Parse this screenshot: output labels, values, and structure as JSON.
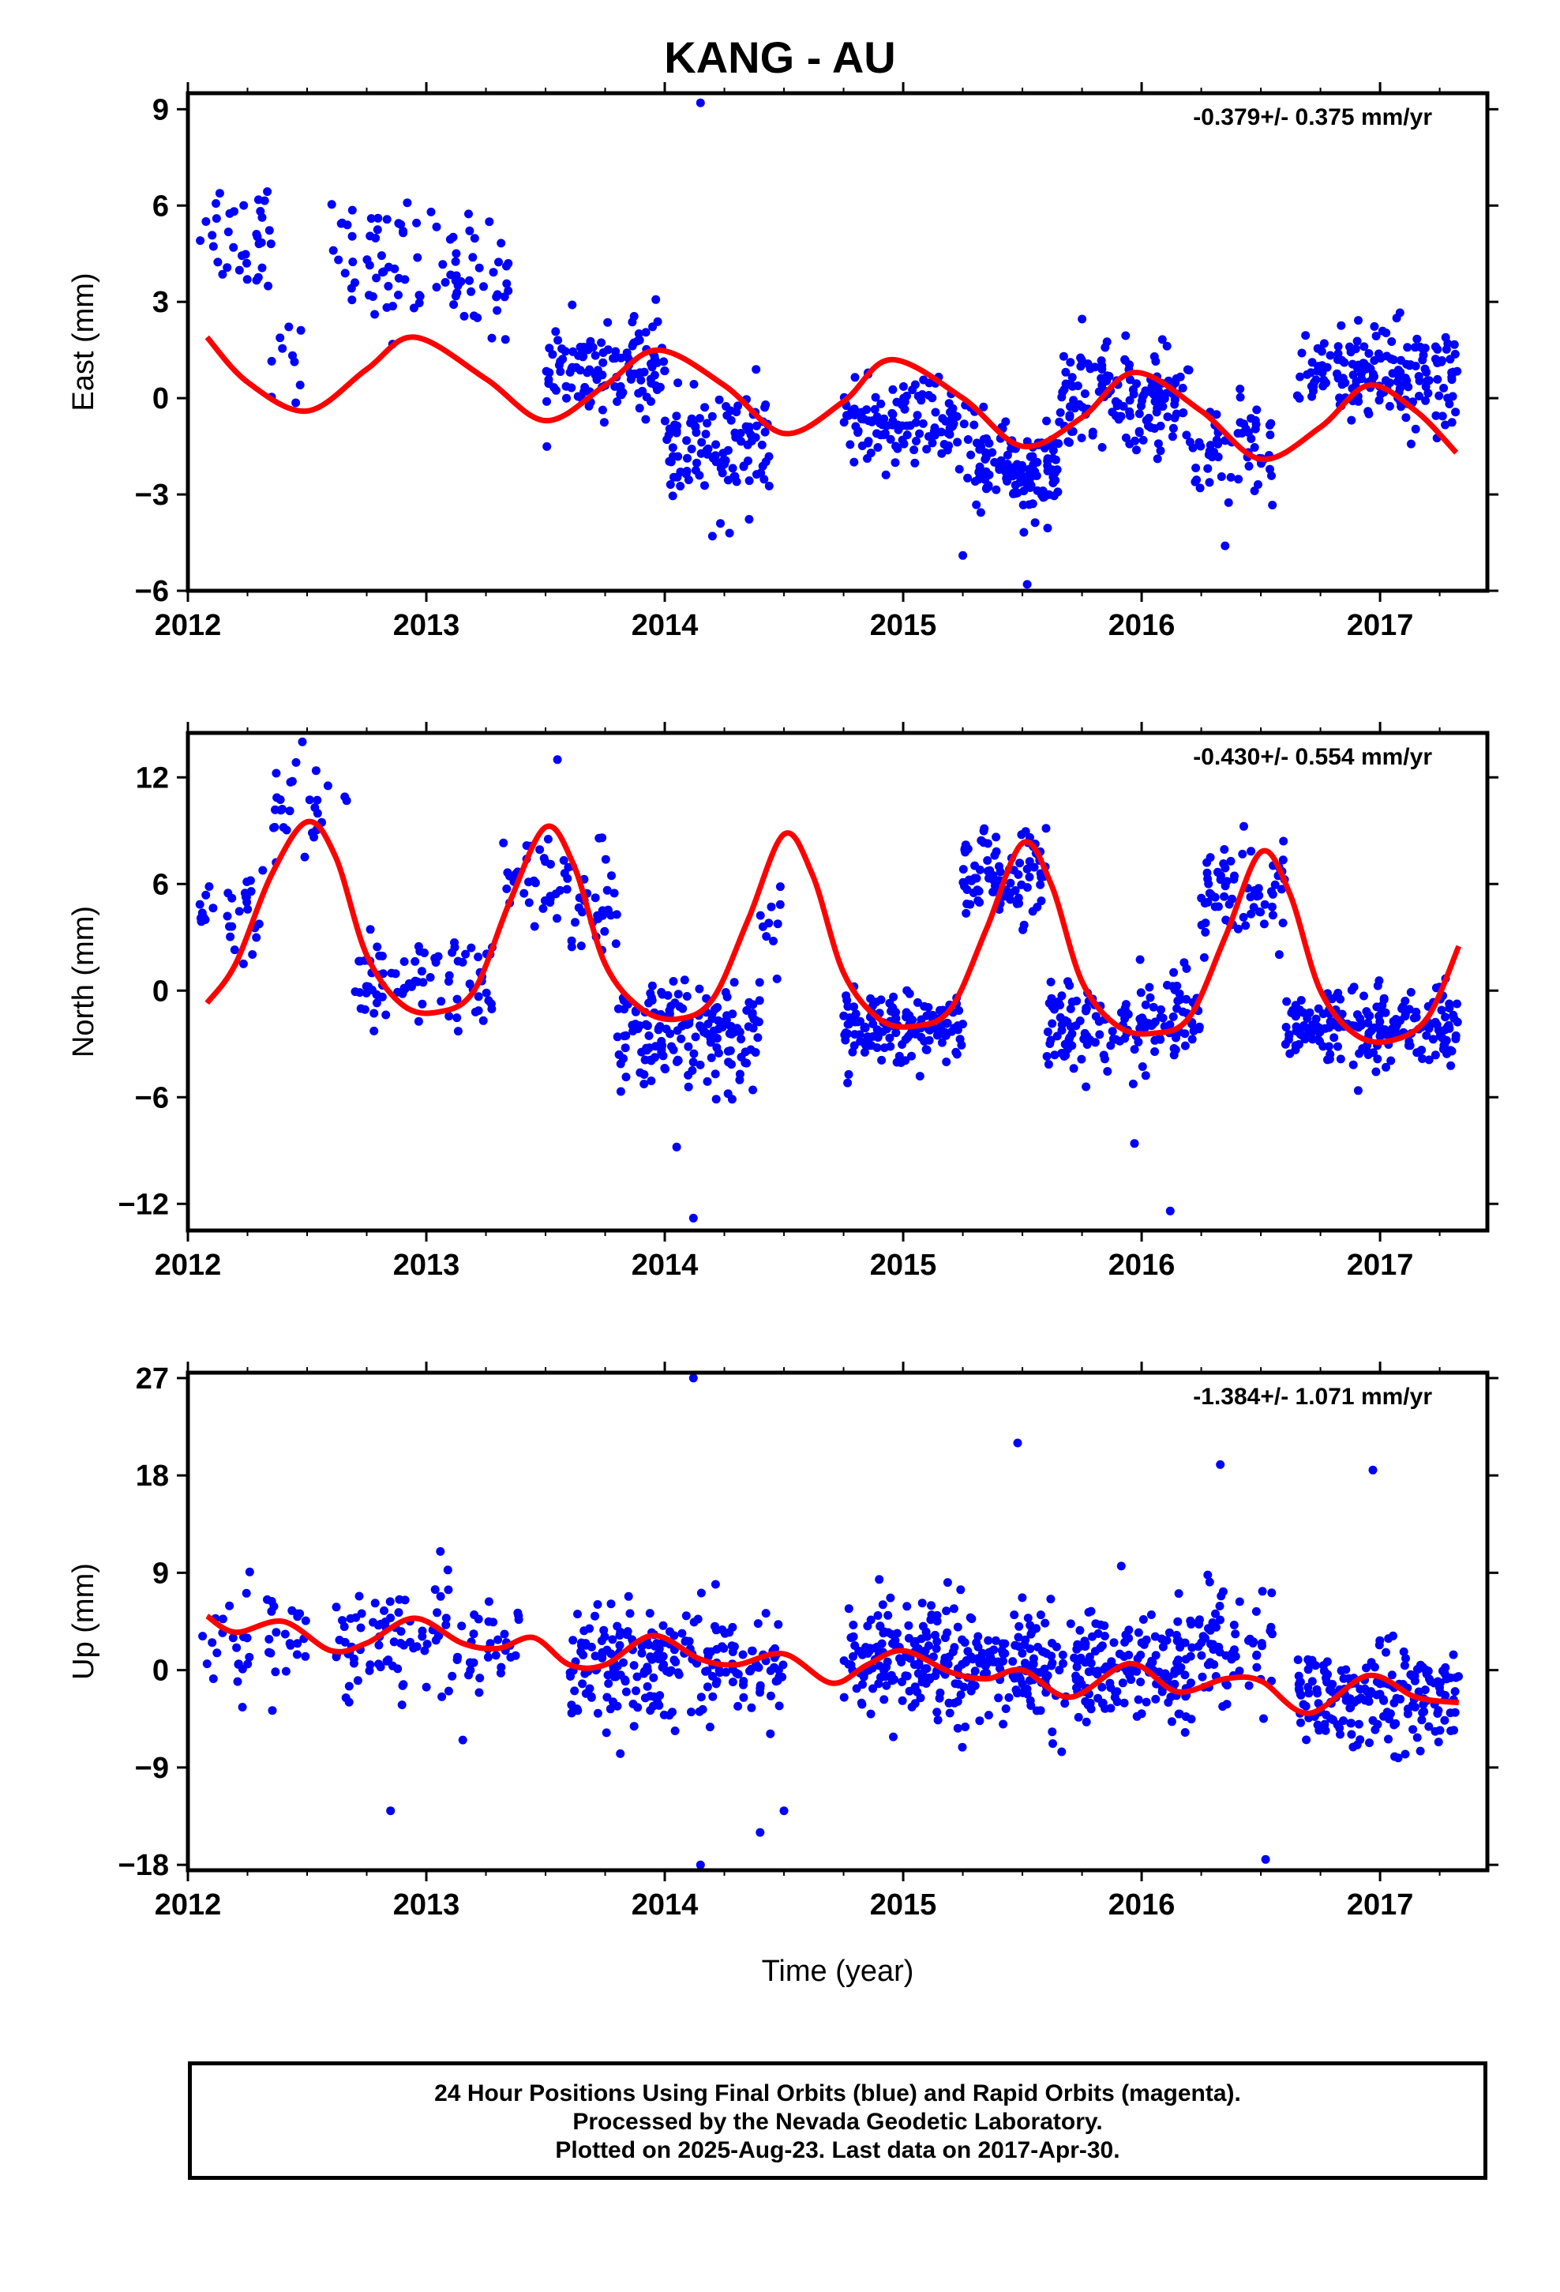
{
  "title": "KANG - AU",
  "x_axis_label": "Time (year)",
  "caption": [
    "24 Hour Positions Using Final Orbits (blue) and Rapid Orbits (magenta).",
    "Processed by the Nevada Geodetic Laboratory.",
    "Plotted on 2025-Aug-23. Last data on 2017-Apr-30."
  ],
  "colors": {
    "points": "#0000ff",
    "model": "#ff0000",
    "frame": "#000000"
  },
  "chart_data": [
    {
      "type": "scatter",
      "name": "East",
      "ylabel": "East (mm)",
      "rate_text": "-0.379+/- 0.375 mm/yr",
      "xlim": [
        2012.0,
        2017.45
      ],
      "ylim": [
        -6,
        9.5
      ],
      "xticks": [
        2012,
        2013,
        2014,
        2015,
        2016,
        2017
      ],
      "yticks": [
        -6,
        -3,
        0,
        3,
        6,
        9
      ],
      "ytick_labels": [
        "−6",
        "−3",
        "0",
        "3",
        "6",
        "9"
      ],
      "model": {
        "x": [
          2012.08,
          2012.25,
          2012.5,
          2012.75,
          2012.95,
          2013.25,
          2013.5,
          2013.75,
          2013.97,
          2014.25,
          2014.5,
          2014.75,
          2014.95,
          2015.25,
          2015.5,
          2015.75,
          2015.97,
          2016.25,
          2016.5,
          2016.75,
          2016.95,
          2017.15,
          2017.32
        ],
        "y": [
          1.9,
          0.5,
          -0.4,
          0.9,
          1.9,
          0.6,
          -0.7,
          0.4,
          1.5,
          0.4,
          -1.1,
          -0.1,
          1.2,
          0.0,
          -1.5,
          -0.6,
          0.8,
          -0.4,
          -1.9,
          -0.9,
          0.4,
          -0.4,
          -1.7
        ]
      },
      "clusters": [
        {
          "x0": 2012.05,
          "x1": 2012.35,
          "mean": 5.2,
          "spread": 1.6,
          "count": 35
        },
        {
          "x0": 2012.35,
          "x1": 2012.5,
          "mean": 1.5,
          "spread": 1.5,
          "count": 10
        },
        {
          "x0": 2012.6,
          "x1": 2013.35,
          "mean": 4.0,
          "spread": 1.6,
          "count": 90
        },
        {
          "x0": 2013.5,
          "x1": 2014.0,
          "mean": 1.0,
          "spread": 1.2,
          "count": 120
        },
        {
          "x0": 2014.0,
          "x1": 2014.45,
          "mean": -1.6,
          "spread": 1.5,
          "count": 110
        },
        {
          "x0": 2014.75,
          "x1": 2015.3,
          "mean": -0.8,
          "spread": 1.1,
          "count": 130
        },
        {
          "x0": 2015.3,
          "x1": 2015.65,
          "mean": -2.3,
          "spread": 1.1,
          "count": 120
        },
        {
          "x0": 2015.65,
          "x1": 2016.2,
          "mean": 0.0,
          "spread": 1.3,
          "count": 150
        },
        {
          "x0": 2016.2,
          "x1": 2016.55,
          "mean": -1.7,
          "spread": 1.3,
          "count": 60
        },
        {
          "x0": 2016.65,
          "x1": 2017.33,
          "mean": 0.8,
          "spread": 1.3,
          "count": 180
        }
      ],
      "outliers": [
        [
          2014.15,
          9.2
        ],
        [
          2015.52,
          -5.8
        ],
        [
          2015.25,
          -4.9
        ],
        [
          2014.2,
          -4.3
        ],
        [
          2016.35,
          -4.6
        ]
      ]
    },
    {
      "type": "scatter",
      "name": "North",
      "ylabel": "North (mm)",
      "rate_text": "-0.430+/- 0.554 mm/yr",
      "xlim": [
        2012.0,
        2017.45
      ],
      "ylim": [
        -13.5,
        14.5
      ],
      "xticks": [
        2012,
        2013,
        2014,
        2015,
        2016,
        2017
      ],
      "yticks": [
        -12,
        -6,
        0,
        6,
        12
      ],
      "ytick_labels": [
        "−12",
        "−6",
        "0",
        "6",
        "12"
      ],
      "model": {
        "x": [
          2012.08,
          2012.2,
          2012.35,
          2012.5,
          2012.62,
          2012.75,
          2012.9,
          2013.05,
          2013.2,
          2013.35,
          2013.5,
          2013.62,
          2013.75,
          2013.9,
          2014.05,
          2014.2,
          2014.35,
          2014.5,
          2014.62,
          2014.75,
          2014.9,
          2015.05,
          2015.2,
          2015.35,
          2015.5,
          2015.62,
          2015.75,
          2015.9,
          2016.05,
          2016.2,
          2016.35,
          2016.5,
          2016.62,
          2016.75,
          2016.9,
          2017.05,
          2017.2,
          2017.33
        ],
        "y": [
          -0.7,
          1.5,
          6.5,
          9.5,
          7.5,
          2.0,
          -0.8,
          -1.2,
          0.0,
          5.0,
          9.2,
          7.0,
          1.5,
          -1.0,
          -1.6,
          -0.5,
          4.0,
          8.8,
          6.5,
          1.0,
          -1.6,
          -2.0,
          -1.0,
          3.5,
          8.3,
          6.0,
          0.5,
          -2.0,
          -2.4,
          -1.5,
          3.0,
          7.8,
          5.5,
          0.0,
          -2.5,
          -2.8,
          -1.5,
          2.5
        ]
      },
      "clusters": [
        {
          "x0": 2012.05,
          "x1": 2012.3,
          "mean": 3.5,
          "spread": 2.5,
          "count": 30
        },
        {
          "x0": 2012.3,
          "x1": 2012.7,
          "mean": 9.5,
          "spread": 2.5,
          "count": 30
        },
        {
          "x0": 2012.7,
          "x1": 2013.3,
          "mean": 0.5,
          "spread": 2.3,
          "count": 80
        },
        {
          "x0": 2013.3,
          "x1": 2013.6,
          "mean": 6.0,
          "spread": 2.2,
          "count": 35
        },
        {
          "x0": 2013.6,
          "x1": 2013.8,
          "mean": 4.5,
          "spread": 3.0,
          "count": 30
        },
        {
          "x0": 2013.8,
          "x1": 2014.4,
          "mean": -2.5,
          "spread": 2.3,
          "count": 170
        },
        {
          "x0": 2014.4,
          "x1": 2014.5,
          "mean": 4.0,
          "spread": 2.5,
          "count": 10
        },
        {
          "x0": 2014.75,
          "x1": 2015.25,
          "mean": -2.0,
          "spread": 1.6,
          "count": 140
        },
        {
          "x0": 2015.25,
          "x1": 2015.6,
          "mean": 6.5,
          "spread": 2.2,
          "count": 90
        },
        {
          "x0": 2015.6,
          "x1": 2016.25,
          "mean": -2.0,
          "spread": 2.3,
          "count": 150
        },
        {
          "x0": 2016.25,
          "x1": 2016.6,
          "mean": 5.5,
          "spread": 2.5,
          "count": 70
        },
        {
          "x0": 2016.6,
          "x1": 2017.33,
          "mean": -2.2,
          "spread": 1.9,
          "count": 200
        }
      ],
      "outliers": [
        [
          2014.12,
          -12.8
        ],
        [
          2016.12,
          -12.4
        ],
        [
          2012.48,
          14.0
        ],
        [
          2013.55,
          13.0
        ],
        [
          2014.05,
          -8.8
        ],
        [
          2015.97,
          -8.6
        ]
      ]
    },
    {
      "type": "scatter",
      "name": "Up",
      "ylabel": "Up (mm)",
      "rate_text": "-1.384+/- 1.071 mm/yr",
      "xlim": [
        2012.0,
        2017.45
      ],
      "ylim": [
        -18.5,
        27.5
      ],
      "xticks": [
        2012,
        2013,
        2014,
        2015,
        2016,
        2017
      ],
      "yticks": [
        -18,
        -9,
        0,
        9,
        18,
        27
      ],
      "ytick_labels": [
        "−18",
        "−9",
        "0",
        "9",
        "18",
        "27"
      ],
      "model": {
        "x": [
          2012.08,
          2012.2,
          2012.4,
          2012.6,
          2012.75,
          2012.95,
          2013.15,
          2013.3,
          2013.45,
          2013.6,
          2013.75,
          2013.95,
          2014.15,
          2014.3,
          2014.5,
          2014.7,
          2014.85,
          2015.0,
          2015.2,
          2015.35,
          2015.5,
          2015.7,
          2015.95,
          2016.15,
          2016.35,
          2016.5,
          2016.7,
          2016.95,
          2017.15,
          2017.33
        ],
        "y": [
          5.0,
          3.5,
          4.5,
          1.8,
          2.5,
          4.8,
          2.5,
          2.0,
          3.0,
          0.5,
          0.5,
          3.2,
          1.0,
          0.5,
          1.5,
          -1.2,
          0.5,
          1.8,
          -0.2,
          -0.8,
          0.0,
          -2.5,
          0.6,
          -2.0,
          -0.8,
          -1.0,
          -4.0,
          -0.5,
          -2.5,
          -3.0
        ]
      },
      "clusters": [
        {
          "x0": 2012.05,
          "x1": 2012.5,
          "mean": 2.0,
          "spread": 4.5,
          "count": 45
        },
        {
          "x0": 2012.6,
          "x1": 2013.4,
          "mean": 2.5,
          "spread": 4.5,
          "count": 110
        },
        {
          "x0": 2013.6,
          "x1": 2014.5,
          "mean": 0.8,
          "spread": 4.2,
          "count": 230
        },
        {
          "x0": 2014.75,
          "x1": 2015.5,
          "mean": 1.0,
          "spread": 4.5,
          "count": 230
        },
        {
          "x0": 2015.5,
          "x1": 2016.2,
          "mean": 0.0,
          "spread": 4.5,
          "count": 210
        },
        {
          "x0": 2016.2,
          "x1": 2016.55,
          "mean": 2.0,
          "spread": 5.0,
          "count": 70
        },
        {
          "x0": 2016.65,
          "x1": 2017.33,
          "mean": -2.5,
          "spread": 3.8,
          "count": 190
        }
      ],
      "outliers": [
        [
          2014.12,
          27.0
        ],
        [
          2014.15,
          -18.0
        ],
        [
          2015.48,
          21.0
        ],
        [
          2016.33,
          19.0
        ],
        [
          2016.97,
          18.5
        ],
        [
          2012.85,
          -13.0
        ],
        [
          2016.52,
          -17.5
        ],
        [
          2014.4,
          -15.0
        ],
        [
          2014.5,
          -13.0
        ]
      ]
    }
  ]
}
